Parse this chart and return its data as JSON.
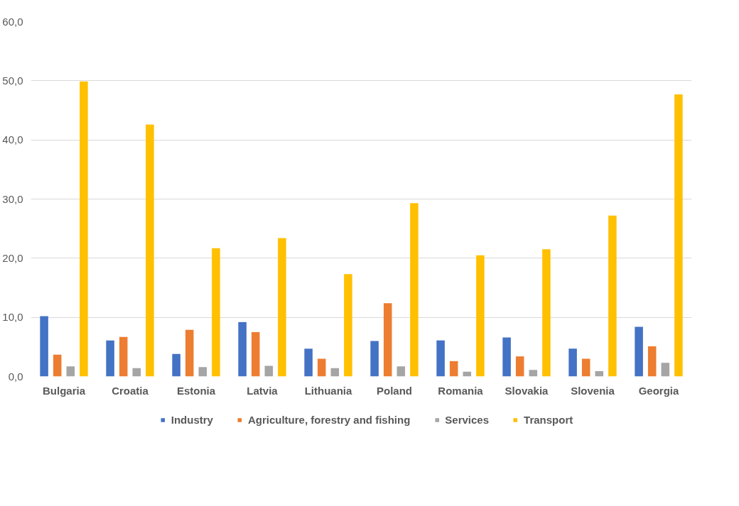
{
  "chart_data": {
    "type": "bar",
    "categories": [
      "Bulgaria",
      "Croatia",
      "Estonia",
      "Latvia",
      "Lithuania",
      "Poland",
      "Romania",
      "Slovakia",
      "Slovenia",
      "Georgia"
    ],
    "series": [
      {
        "name": "Industry",
        "color": "#4472c4",
        "values": [
          10.2,
          6.1,
          3.8,
          9.2,
          4.7,
          6.0,
          6.1,
          6.6,
          4.7,
          8.4
        ]
      },
      {
        "name": "Agriculture, forestry and fishing",
        "color": "#ed7d31",
        "values": [
          3.7,
          6.7,
          7.9,
          7.5,
          3.0,
          12.4,
          2.6,
          3.4,
          3.0,
          5.1
        ]
      },
      {
        "name": "Services",
        "color": "#a5a5a5",
        "values": [
          1.7,
          1.4,
          1.6,
          1.8,
          1.4,
          1.7,
          0.8,
          1.1,
          0.9,
          2.3
        ]
      },
      {
        "name": "Transport",
        "color": "#ffc000",
        "values": [
          49.9,
          42.6,
          21.7,
          23.4,
          17.3,
          29.3,
          20.5,
          21.5,
          27.2,
          47.7
        ]
      }
    ],
    "ylim": [
      0,
      60
    ],
    "yticks": [
      {
        "value": 0,
        "label": "0,0"
      },
      {
        "value": 10,
        "label": "10,0"
      },
      {
        "value": 20,
        "label": "20,0"
      },
      {
        "value": 30,
        "label": "30,0"
      },
      {
        "value": 40,
        "label": "40,0"
      },
      {
        "value": 50,
        "label": "50,0"
      },
      {
        "value": 60,
        "label": "60,0"
      }
    ],
    "grid": "y",
    "legend": "bottom"
  }
}
